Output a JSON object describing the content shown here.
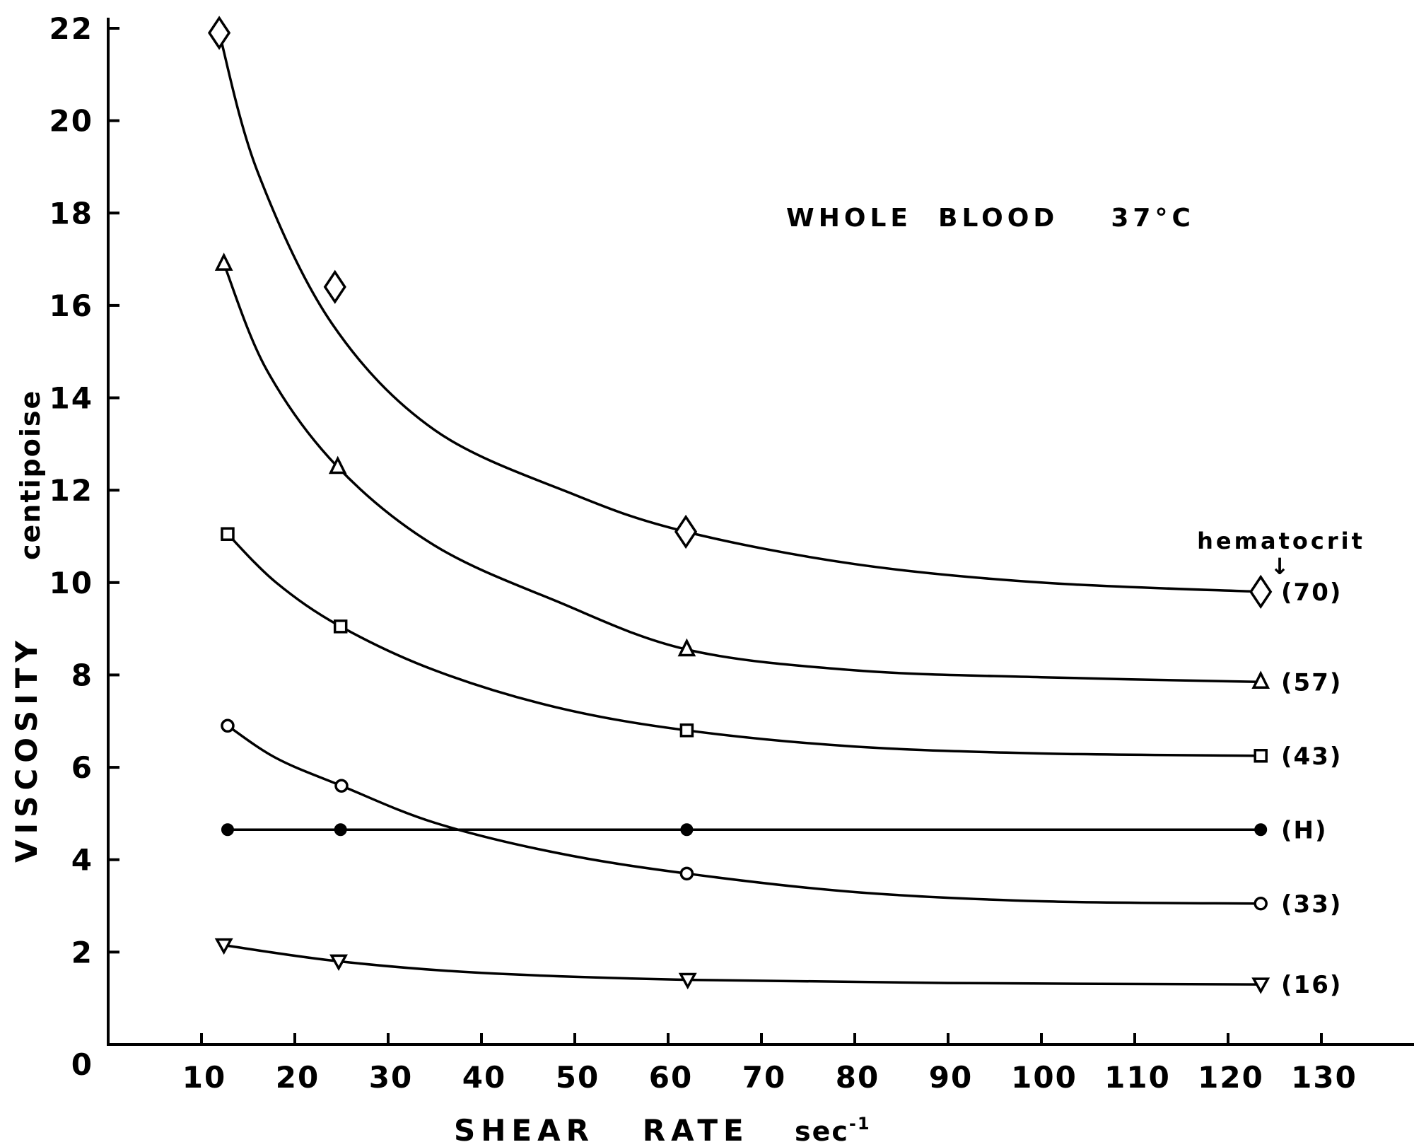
{
  "chart_data": {
    "type": "line",
    "annotation": "WHOLE  BLOOD    37°C",
    "xlabel": "SHEAR   RATE",
    "xunit": "sec",
    "xunit_sup": "-1",
    "ylabel": "VISCOSITY",
    "yunit": "centipoise",
    "legend_title": "hematocrit",
    "legend_arrow": "↓",
    "xlim": [
      0,
      130
    ],
    "ylim": [
      0,
      22
    ],
    "x_ticks": [
      10,
      20,
      30,
      40,
      50,
      60,
      70,
      80,
      90,
      100,
      110,
      120,
      130
    ],
    "x_tick_labels": [
      "10",
      "20",
      "30",
      "40",
      "50",
      "60",
      "70",
      "80",
      "90",
      "100",
      "110",
      "120",
      "130"
    ],
    "y_ticks": [
      0,
      2,
      4,
      6,
      8,
      10,
      12,
      14,
      16,
      18,
      20,
      22
    ],
    "y_tick_labels": [
      "0",
      "2",
      "4",
      "6",
      "8",
      "10",
      "12",
      "14",
      "16",
      "18",
      "20",
      "22"
    ],
    "grid": false,
    "series": [
      {
        "name": "(70)",
        "marker": "diamond",
        "x": [
          11.9,
          24.3,
          61.9,
          123.5
        ],
        "values": [
          21.9,
          16.4,
          11.1,
          9.8
        ],
        "fit": [
          [
            11.9,
            21.9
          ],
          [
            16,
            18.9
          ],
          [
            24,
            15.6
          ],
          [
            35,
            13.3
          ],
          [
            50,
            11.9
          ],
          [
            61.9,
            11.1
          ],
          [
            80,
            10.4
          ],
          [
            100,
            10.0
          ],
          [
            123.5,
            9.8
          ]
        ]
      },
      {
        "name": "(57)",
        "marker": "triangle-up",
        "x": [
          12.4,
          24.6,
          62.0,
          123.5
        ],
        "values": [
          16.9,
          12.5,
          8.55,
          7.85
        ],
        "fit": [
          [
            12.4,
            16.9
          ],
          [
            17,
            14.6
          ],
          [
            24.6,
            12.5
          ],
          [
            35,
            10.8
          ],
          [
            48,
            9.6
          ],
          [
            62.0,
            8.55
          ],
          [
            80,
            8.1
          ],
          [
            100,
            7.95
          ],
          [
            123.5,
            7.85
          ]
        ]
      },
      {
        "name": "(43)",
        "marker": "square",
        "x": [
          12.8,
          24.9,
          62.0,
          123.5
        ],
        "values": [
          11.05,
          9.05,
          6.8,
          6.25
        ],
        "fit": [
          [
            12.8,
            11.05
          ],
          [
            18,
            10.0
          ],
          [
            24.9,
            9.05
          ],
          [
            35,
            8.1
          ],
          [
            48,
            7.3
          ],
          [
            62.0,
            6.8
          ],
          [
            80,
            6.45
          ],
          [
            100,
            6.3
          ],
          [
            123.5,
            6.25
          ]
        ]
      },
      {
        "name": "(H)",
        "marker": "dot",
        "x": [
          12.8,
          24.9,
          62.0,
          123.5
        ],
        "values": [
          4.65,
          4.65,
          4.65,
          4.65
        ],
        "fit": [
          [
            12.8,
            4.65
          ],
          [
            123.5,
            4.65
          ]
        ]
      },
      {
        "name": "(33)",
        "marker": "circle",
        "x": [
          12.8,
          25.0,
          62.0,
          123.5
        ],
        "values": [
          6.9,
          5.6,
          3.7,
          3.05
        ],
        "fit": [
          [
            12.8,
            6.9
          ],
          [
            18,
            6.2
          ],
          [
            25.0,
            5.6
          ],
          [
            35,
            4.8
          ],
          [
            48,
            4.15
          ],
          [
            62.0,
            3.7
          ],
          [
            80,
            3.3
          ],
          [
            100,
            3.1
          ],
          [
            123.5,
            3.05
          ]
        ]
      },
      {
        "name": "(16)",
        "marker": "triangle-down",
        "x": [
          12.4,
          24.7,
          62.1,
          123.5
        ],
        "values": [
          2.15,
          1.8,
          1.4,
          1.3
        ],
        "fit": [
          [
            12.4,
            2.15
          ],
          [
            24.7,
            1.8
          ],
          [
            40,
            1.55
          ],
          [
            62.1,
            1.4
          ],
          [
            90,
            1.33
          ],
          [
            123.5,
            1.3
          ]
        ]
      }
    ]
  }
}
